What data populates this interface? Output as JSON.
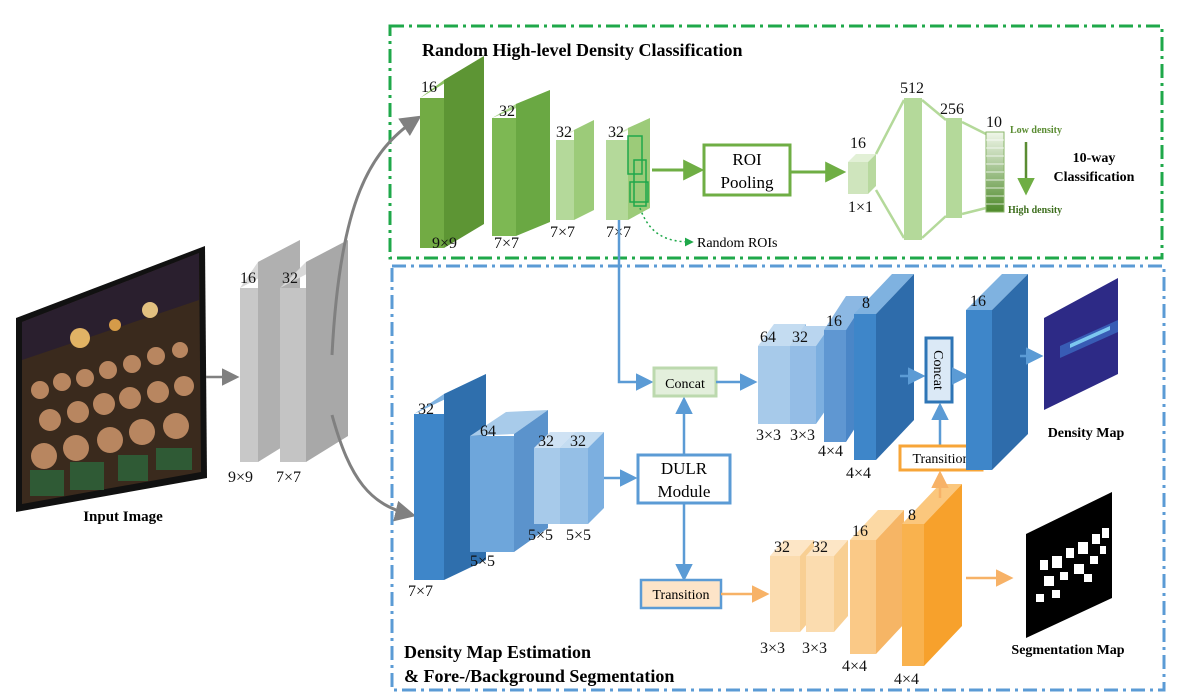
{
  "colors": {
    "green_box": "#1fa84a",
    "blue_box": "#5b9bd5",
    "green_arrow": "#6fae44",
    "blue_arrow": "#5b9bd5",
    "orange_arrow": "#f7b267",
    "gray_arrow": "#808080"
  },
  "input": {
    "label": "Input Image"
  },
  "backbone": {
    "layer1": {
      "ch": "16",
      "k": "9×9"
    },
    "layer2": {
      "ch": "32",
      "k": "7×7"
    }
  },
  "classification": {
    "title": "Random High-level Density Classification",
    "layers": [
      {
        "ch": "16",
        "k": "9×9"
      },
      {
        "ch": "32",
        "k": "7×7"
      },
      {
        "ch": "32",
        "k": "7×7"
      },
      {
        "ch": "32",
        "k": "7×7"
      }
    ],
    "random_rois": "Random ROIs",
    "roi_line1": "ROI",
    "roi_line2": "Pooling",
    "fc": {
      "ch16": "16",
      "k": "1×1",
      "ch512": "512",
      "ch256": "256",
      "ch10": "10"
    },
    "low_density": "Low density",
    "high_density": "High density",
    "classify_line1": "10-way",
    "classify_line2": "Classification"
  },
  "estimation": {
    "title_line1": "Density Map Estimation",
    "title_line2": "& Fore-/Background Segmentation",
    "encoder": [
      {
        "ch": "32",
        "k": "7×7"
      },
      {
        "ch": "64",
        "k": "5×5"
      },
      {
        "ch": "32",
        "k": "5×5"
      },
      {
        "ch": "32",
        "k": "5×5"
      }
    ],
    "dulr_line1": "DULR",
    "dulr_line2": "Module",
    "concat": "Concat",
    "transition": "Transition",
    "density_decoder": [
      {
        "ch": "64",
        "k": "3×3"
      },
      {
        "ch": "32",
        "k": "3×3"
      },
      {
        "ch": "16",
        "k": "4×4"
      },
      {
        "ch": "8",
        "k": "4×4"
      }
    ],
    "concat_vertical": "Concat",
    "transition2": "Transition",
    "final_ch": "16",
    "density_map": "Density Map",
    "seg_decoder": [
      {
        "ch": "32",
        "k": "3×3"
      },
      {
        "ch": "32",
        "k": "3×3"
      },
      {
        "ch": "16",
        "k": "4×4"
      },
      {
        "ch": "8",
        "k": "4×4"
      }
    ],
    "segmentation_map": "Segmentation Map"
  }
}
